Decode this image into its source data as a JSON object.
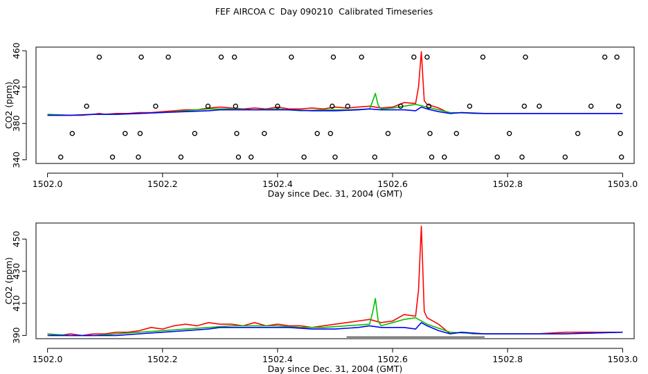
{
  "title": "FEF AIRCOA C  Day 090210  Calibrated Timeseries",
  "colors": {
    "red": "#ff0000",
    "green": "#00c000",
    "blue": "#0000ff",
    "axis": "#000000"
  },
  "chart_data": [
    {
      "type": "line",
      "xlabel": "Day since Dec. 31, 2004 (GMT)",
      "ylabel": "CO2 (ppm)",
      "xlim": [
        1501.98,
        1503.02
      ],
      "ylim": [
        336,
        464
      ],
      "xticks": [
        "1502.0",
        "1502.2",
        "1502.4",
        "1502.6",
        "1502.8",
        "1503.0"
      ],
      "yticks": [
        "340",
        "380",
        "420",
        "460"
      ],
      "series": [
        {
          "color": "red",
          "x": [
            1502.0,
            1502.02,
            1502.04,
            1502.06,
            1502.08,
            1502.09,
            1502.1,
            1502.12,
            1502.14,
            1502.16,
            1502.18,
            1502.2,
            1502.22,
            1502.24,
            1502.26,
            1502.28,
            1502.3,
            1502.32,
            1502.34,
            1502.36,
            1502.38,
            1502.4,
            1502.42,
            1502.44,
            1502.46,
            1502.48,
            1502.5,
            1502.52,
            1502.54,
            1502.56,
            1502.58,
            1502.6,
            1502.62,
            1502.64,
            1502.645,
            1502.65,
            1502.655,
            1502.66,
            1502.68,
            1502.7,
            1502.72,
            1502.74,
            1502.76,
            1502.78,
            1502.8,
            1502.85,
            1502.9,
            1502.95,
            1503.0
          ],
          "y": [
            389,
            389,
            389,
            389,
            390,
            391,
            390,
            391,
            391,
            392,
            392,
            393,
            394,
            395,
            395,
            397,
            398,
            397,
            396,
            397,
            396,
            398,
            396,
            396,
            397,
            396,
            398,
            397,
            398,
            399,
            397,
            398,
            403,
            402,
            420,
            459,
            405,
            401,
            397,
            391,
            392,
            391,
            391,
            391,
            391,
            391,
            391,
            391,
            391
          ]
        },
        {
          "color": "green",
          "x": [
            1502.0,
            1502.04,
            1502.08,
            1502.12,
            1502.16,
            1502.2,
            1502.24,
            1502.28,
            1502.32,
            1502.36,
            1502.4,
            1502.44,
            1502.48,
            1502.52,
            1502.56,
            1502.565,
            1502.57,
            1502.575,
            1502.58,
            1502.6,
            1502.62,
            1502.64,
            1502.66,
            1502.7,
            1502.75,
            1502.8,
            1502.9,
            1503.0
          ],
          "y": [
            390,
            389,
            390,
            390,
            391,
            392,
            394,
            396,
            396,
            395,
            396,
            394,
            395,
            395,
            396,
            404,
            413,
            400,
            396,
            397,
            399,
            401,
            398,
            392,
            391,
            391,
            391,
            391
          ]
        },
        {
          "color": "blue",
          "x": [
            1502.0,
            1502.04,
            1502.08,
            1502.12,
            1502.16,
            1502.2,
            1502.24,
            1502.28,
            1502.3,
            1502.34,
            1502.38,
            1502.42,
            1502.46,
            1502.5,
            1502.54,
            1502.56,
            1502.58,
            1502.6,
            1502.62,
            1502.64,
            1502.65,
            1502.66,
            1502.68,
            1502.7,
            1502.72,
            1502.76,
            1502.8,
            1502.9,
            1503.0
          ],
          "y": [
            389,
            389,
            390,
            390,
            391,
            392,
            393,
            394,
            395,
            395,
            395,
            395,
            394,
            394,
            395,
            396,
            395,
            395,
            395,
            394,
            398,
            396,
            393,
            391,
            392,
            391,
            391,
            391,
            391
          ]
        }
      ],
      "points": {
        "x": [
          1502.023,
          1502.043,
          1502.068,
          1502.09,
          1502.113,
          1502.135,
          1502.158,
          1502.161,
          1502.163,
          1502.188,
          1502.21,
          1502.232,
          1502.256,
          1502.279,
          1502.302,
          1502.325,
          1502.327,
          1502.329,
          1502.332,
          1502.354,
          1502.377,
          1502.4,
          1502.424,
          1502.446,
          1502.469,
          1502.492,
          1502.495,
          1502.497,
          1502.5,
          1502.522,
          1502.546,
          1502.569,
          1502.592,
          1502.614,
          1502.637,
          1502.66,
          1502.663,
          1502.665,
          1502.668,
          1502.69,
          1502.711,
          1502.734,
          1502.757,
          1502.782,
          1502.803,
          1502.825,
          1502.829,
          1502.831,
          1502.855,
          1502.9,
          1502.922,
          1502.945,
          1502.969,
          1502.99,
          1502.993,
          1502.996,
          1502.998
        ],
        "y": [
          343,
          369,
          399,
          453,
          343,
          369,
          343,
          369,
          453,
          399,
          453,
          343,
          369,
          399,
          453,
          453,
          399,
          369,
          343,
          343,
          369,
          399,
          453,
          343,
          369,
          369,
          399,
          453,
          343,
          399,
          453,
          343,
          369,
          399,
          453,
          453,
          399,
          369,
          343,
          343,
          369,
          399,
          453,
          343,
          369,
          343,
          399,
          453,
          399,
          343,
          369,
          399,
          453,
          453,
          399,
          369,
          343
        ]
      }
    },
    {
      "type": "line",
      "xlabel": "Day since Dec. 31, 2004 (GMT)",
      "ylabel": "CO2 (ppm)",
      "xlim": [
        1501.98,
        1503.02
      ],
      "ylim": [
        388,
        460
      ],
      "xticks": [
        "1502.0",
        "1502.2",
        "1502.4",
        "1502.6",
        "1502.8",
        "1503.0"
      ],
      "yticks": [
        "390",
        "410",
        "430",
        "450"
      ],
      "series": [
        {
          "color": "red",
          "x": [
            1502.0,
            1502.02,
            1502.04,
            1502.06,
            1502.08,
            1502.1,
            1502.12,
            1502.14,
            1502.16,
            1502.18,
            1502.2,
            1502.22,
            1502.24,
            1502.26,
            1502.28,
            1502.3,
            1502.32,
            1502.34,
            1502.36,
            1502.38,
            1502.4,
            1502.42,
            1502.44,
            1502.46,
            1502.48,
            1502.5,
            1502.52,
            1502.54,
            1502.56,
            1502.58,
            1502.6,
            1502.62,
            1502.64,
            1502.645,
            1502.65,
            1502.655,
            1502.66,
            1502.68,
            1502.7,
            1502.72,
            1502.74,
            1502.76,
            1502.8,
            1502.85,
            1502.9,
            1502.95,
            1503.0
          ],
          "y": [
            391,
            390,
            391,
            390,
            391,
            391,
            392,
            392,
            393,
            395,
            394,
            396,
            397,
            396,
            398,
            397,
            397,
            396,
            398,
            396,
            397,
            396,
            396,
            395,
            396,
            397,
            398,
            399,
            400,
            398,
            399,
            403,
            402,
            418,
            458,
            405,
            401,
            397,
            391,
            392,
            391,
            391,
            391,
            391,
            392,
            392,
            392
          ]
        },
        {
          "color": "green",
          "x": [
            1502.0,
            1502.04,
            1502.08,
            1502.12,
            1502.16,
            1502.2,
            1502.24,
            1502.28,
            1502.32,
            1502.36,
            1502.4,
            1502.44,
            1502.48,
            1502.52,
            1502.56,
            1502.565,
            1502.57,
            1502.575,
            1502.58,
            1502.6,
            1502.62,
            1502.64,
            1502.66,
            1502.7,
            1502.75,
            1502.8,
            1502.9,
            1503.0
          ],
          "y": [
            391,
            390,
            390,
            391,
            392,
            393,
            394,
            395,
            396,
            396,
            396,
            395,
            395,
            396,
            397,
            404,
            413,
            399,
            396,
            398,
            400,
            401,
            397,
            392,
            391,
            391,
            391,
            392
          ]
        },
        {
          "color": "blue",
          "x": [
            1502.0,
            1502.04,
            1502.08,
            1502.12,
            1502.16,
            1502.2,
            1502.24,
            1502.28,
            1502.3,
            1502.34,
            1502.38,
            1502.42,
            1502.46,
            1502.5,
            1502.54,
            1502.56,
            1502.58,
            1502.6,
            1502.62,
            1502.64,
            1502.65,
            1502.66,
            1502.68,
            1502.7,
            1502.72,
            1502.76,
            1502.8,
            1502.9,
            1503.0
          ],
          "y": [
            390,
            390,
            390,
            390,
            391,
            392,
            393,
            394,
            395,
            395,
            395,
            395,
            394,
            394,
            395,
            396,
            395,
            395,
            395,
            394,
            398,
            396,
            393,
            391,
            392,
            391,
            391,
            391,
            392
          ]
        }
      ],
      "bars": [
        {
          "x0": 1502.52,
          "x1": 1502.76,
          "y": 389
        }
      ]
    }
  ]
}
